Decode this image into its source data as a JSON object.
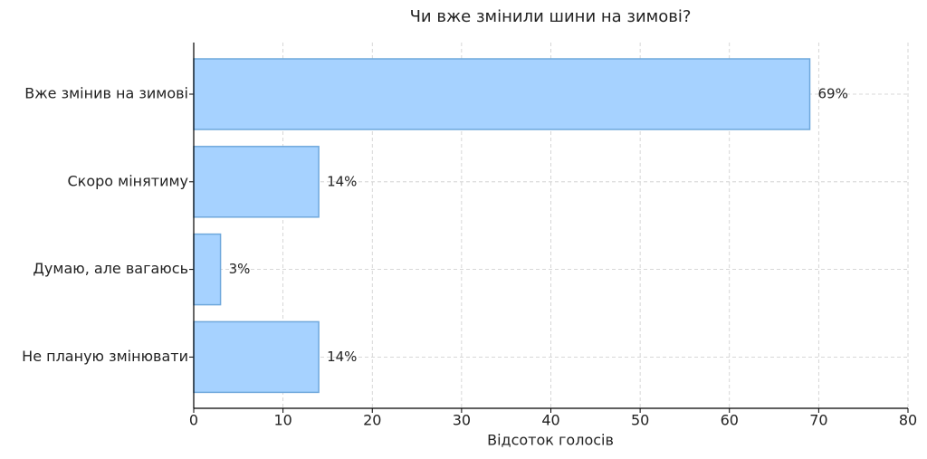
{
  "chart_data": {
    "type": "bar",
    "orientation": "horizontal",
    "title": "Чи вже змінили шини на зимові?",
    "xlabel": "Відсоток голосів",
    "categories": [
      "Вже змінив на зимові",
      "Скоро мінятиму",
      "Думаю, але вагаюсь",
      "Не планую змінювати"
    ],
    "values": [
      69,
      14,
      3,
      14
    ],
    "value_labels": [
      "69%",
      "14%",
      "3%",
      "14%"
    ],
    "color": "#a6d2ff",
    "edgecolor": "#6fa8dc",
    "xlim": [
      0,
      80
    ],
    "xticks": [
      0,
      10,
      20,
      30,
      40,
      50,
      60,
      70,
      80
    ],
    "grid": true
  }
}
